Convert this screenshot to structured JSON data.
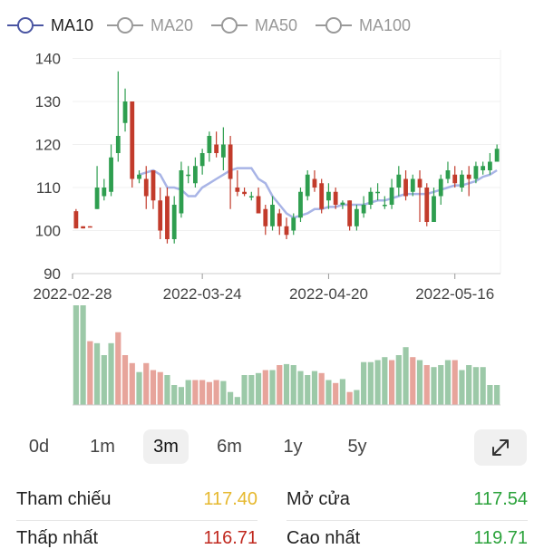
{
  "legend": [
    {
      "label": "MA10",
      "color": "#4a55a2",
      "active": true
    },
    {
      "label": "MA20",
      "color": "#999999",
      "active": false
    },
    {
      "label": "MA50",
      "color": "#999999",
      "active": false
    },
    {
      "label": "MA100",
      "color": "#999999",
      "active": false
    }
  ],
  "colors": {
    "up": "#2e9e4f",
    "down": "#c23b2b",
    "ma": "#a8b4e6",
    "vol_up": "#9cc9a8",
    "vol_down": "#e7a49b",
    "flat": "#c23b2b"
  },
  "chart_data": {
    "type": "candlestick",
    "ylim": [
      90,
      142
    ],
    "y_ticks": [
      "140",
      "130",
      "120",
      "110",
      "100",
      "90"
    ],
    "x_tick_labels": [
      "2022-02-28",
      "2022-03-24",
      "2022-04-20",
      "2022-05-16"
    ],
    "x_tick_indices": [
      0,
      18,
      36,
      54
    ],
    "candles": [
      [
        104.5,
        100.5,
        105,
        100.5
      ],
      [
        101,
        100.5,
        101,
        100.5
      ],
      [
        101,
        100.8,
        101,
        100.8
      ],
      [
        105,
        110,
        115,
        105
      ],
      [
        108,
        110,
        112,
        107
      ],
      [
        109,
        117,
        120,
        108
      ],
      [
        118,
        122,
        137,
        116
      ],
      [
        125,
        130,
        133,
        123
      ],
      [
        130,
        112,
        130,
        110
      ],
      [
        112,
        113,
        114,
        111
      ],
      [
        112,
        108,
        115,
        105
      ],
      [
        114,
        107,
        114,
        105
      ],
      [
        107,
        100,
        110,
        98
      ],
      [
        108,
        98,
        110,
        97
      ],
      [
        98,
        106,
        108,
        97
      ],
      [
        104,
        114,
        116,
        103
      ],
      [
        113,
        113,
        115,
        111
      ],
      [
        111,
        115,
        117,
        110
      ],
      [
        115,
        118,
        119,
        113
      ],
      [
        118,
        122,
        123,
        116
      ],
      [
        120,
        118,
        123,
        117
      ],
      [
        117,
        120,
        124,
        114
      ],
      [
        120,
        112,
        122,
        105
      ],
      [
        110,
        109,
        114,
        108
      ],
      [
        109,
        108.5,
        110,
        108
      ],
      [
        108,
        108,
        109,
        107
      ],
      [
        108,
        104,
        110,
        104
      ],
      [
        105,
        101,
        106,
        99
      ],
      [
        101,
        106,
        108,
        100
      ],
      [
        104,
        101,
        105,
        99
      ],
      [
        101,
        99,
        103,
        98
      ],
      [
        100,
        103,
        104,
        99
      ],
      [
        103,
        109,
        110,
        102
      ],
      [
        108,
        113,
        114,
        107
      ],
      [
        112,
        110,
        114,
        109
      ],
      [
        111,
        105,
        112,
        104
      ],
      [
        107,
        109,
        111,
        105
      ],
      [
        109,
        106,
        110,
        105
      ],
      [
        106,
        106.5,
        107,
        105
      ],
      [
        107,
        101,
        107,
        100
      ],
      [
        101,
        105,
        106,
        100
      ],
      [
        104,
        106,
        108,
        103
      ],
      [
        106,
        109,
        110,
        105
      ],
      [
        109,
        109,
        111,
        107
      ],
      [
        106,
        106,
        108,
        105
      ],
      [
        106,
        110,
        112,
        105
      ],
      [
        110,
        113,
        115,
        108
      ],
      [
        112,
        108,
        114,
        107
      ],
      [
        109,
        112,
        113,
        108
      ],
      [
        112,
        110,
        114,
        102
      ],
      [
        110,
        102,
        111,
        101
      ],
      [
        102,
        108,
        110,
        102
      ],
      [
        108,
        112,
        113,
        106
      ],
      [
        112,
        114,
        116,
        111
      ],
      [
        113,
        111,
        115,
        110
      ],
      [
        110,
        113,
        114,
        109
      ],
      [
        113,
        112,
        115,
        108
      ],
      [
        112,
        115,
        116,
        111
      ],
      [
        114,
        115,
        116,
        113
      ],
      [
        114,
        116,
        118,
        113
      ],
      [
        116,
        119,
        120,
        116
      ]
    ],
    "ma10": [
      null,
      null,
      null,
      null,
      null,
      null,
      null,
      null,
      null,
      113,
      113.5,
      114,
      113,
      110,
      110,
      109.5,
      108,
      108,
      110,
      111,
      112,
      113,
      114,
      114.5,
      114.5,
      114.5,
      112,
      111,
      108,
      106,
      104,
      103,
      103.5,
      104,
      105,
      105,
      105.5,
      105.5,
      106,
      106,
      106,
      106,
      106.5,
      107,
      107,
      107.5,
      108,
      108.5,
      108.5,
      108.5,
      108.5,
      109,
      109.5,
      110,
      110.5,
      110.5,
      111,
      111.5,
      112.5,
      113,
      114
    ],
    "volumes": [
      {
        "v": 1.0,
        "up": true
      },
      {
        "v": 1.0,
        "up": true
      },
      {
        "v": 0.64,
        "up": false
      },
      {
        "v": 0.62,
        "up": true
      },
      {
        "v": 0.5,
        "up": true
      },
      {
        "v": 0.62,
        "up": true
      },
      {
        "v": 0.73,
        "up": false
      },
      {
        "v": 0.5,
        "up": false
      },
      {
        "v": 0.42,
        "up": false
      },
      {
        "v": 0.33,
        "up": true
      },
      {
        "v": 0.42,
        "up": false
      },
      {
        "v": 0.35,
        "up": false
      },
      {
        "v": 0.33,
        "up": false
      },
      {
        "v": 0.3,
        "up": true
      },
      {
        "v": 0.2,
        "up": true
      },
      {
        "v": 0.18,
        "up": true
      },
      {
        "v": 0.25,
        "up": true
      },
      {
        "v": 0.25,
        "up": false
      },
      {
        "v": 0.25,
        "up": false
      },
      {
        "v": 0.23,
        "up": false
      },
      {
        "v": 0.25,
        "up": false
      },
      {
        "v": 0.24,
        "up": true
      },
      {
        "v": 0.13,
        "up": true
      },
      {
        "v": 0.08,
        "up": true
      },
      {
        "v": 0.3,
        "up": true
      },
      {
        "v": 0.3,
        "up": true
      },
      {
        "v": 0.32,
        "up": true
      },
      {
        "v": 0.35,
        "up": false
      },
      {
        "v": 0.35,
        "up": true
      },
      {
        "v": 0.4,
        "up": false
      },
      {
        "v": 0.41,
        "up": true
      },
      {
        "v": 0.4,
        "up": true
      },
      {
        "v": 0.34,
        "up": true
      },
      {
        "v": 0.3,
        "up": true
      },
      {
        "v": 0.34,
        "up": true
      },
      {
        "v": 0.32,
        "up": false
      },
      {
        "v": 0.25,
        "up": true
      },
      {
        "v": 0.22,
        "up": false
      },
      {
        "v": 0.26,
        "up": true
      },
      {
        "v": 0.13,
        "up": false
      },
      {
        "v": 0.15,
        "up": true
      },
      {
        "v": 0.43,
        "up": true
      },
      {
        "v": 0.43,
        "up": true
      },
      {
        "v": 0.45,
        "up": true
      },
      {
        "v": 0.48,
        "up": true
      },
      {
        "v": 0.45,
        "up": false
      },
      {
        "v": 0.5,
        "up": true
      },
      {
        "v": 0.58,
        "up": true
      },
      {
        "v": 0.48,
        "up": false
      },
      {
        "v": 0.45,
        "up": true
      },
      {
        "v": 0.4,
        "up": false
      },
      {
        "v": 0.38,
        "up": true
      },
      {
        "v": 0.4,
        "up": true
      },
      {
        "v": 0.45,
        "up": true
      },
      {
        "v": 0.45,
        "up": false
      },
      {
        "v": 0.35,
        "up": true
      },
      {
        "v": 0.4,
        "up": true
      },
      {
        "v": 0.38,
        "up": true
      },
      {
        "v": 0.38,
        "up": true
      },
      {
        "v": 0.2,
        "up": true
      },
      {
        "v": 0.2,
        "up": true
      }
    ]
  },
  "timeframes": [
    {
      "label": "0d",
      "active": false
    },
    {
      "label": "1m",
      "active": false
    },
    {
      "label": "3m",
      "active": true
    },
    {
      "label": "6m",
      "active": false
    },
    {
      "label": "1y",
      "active": false
    },
    {
      "label": "5y",
      "active": false
    }
  ],
  "stats": {
    "tham_chieu_label": "Tham chiếu",
    "tham_chieu_value": "117.40",
    "tham_chieu_color": "#e6b82d",
    "mo_cua_label": "Mở cửa",
    "mo_cua_value": "117.54",
    "mo_cua_color": "#2aa23a",
    "thap_nhat_label": "Thấp nhất",
    "thap_nhat_value": "116.71",
    "thap_nhat_color": "#c0281e",
    "cao_nhat_label": "Cao nhất",
    "cao_nhat_value": "119.71",
    "cao_nhat_color": "#2aa23a"
  }
}
